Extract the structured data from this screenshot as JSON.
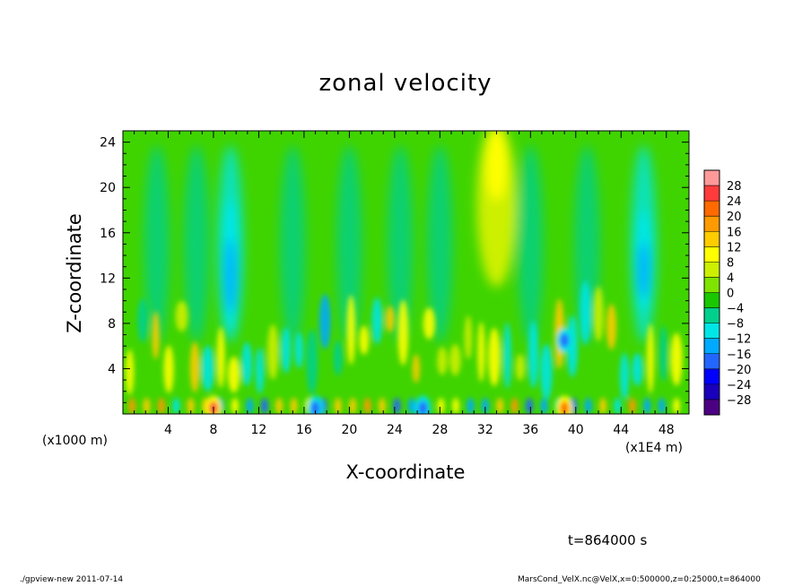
{
  "chart_data": {
    "type": "heatmap",
    "title": "zonal velocity",
    "xlabel": "X-coordinate",
    "ylabel": "Z-coordinate",
    "x_unit_left": "(x1000 m)",
    "x_unit_right": "(x1E4 m)",
    "xlim": [
      0,
      50
    ],
    "ylim": [
      0,
      25
    ],
    "x_ticks": [
      "4",
      "8",
      "12",
      "16",
      "20",
      "24",
      "28",
      "32",
      "36",
      "40",
      "44",
      "48"
    ],
    "x_tick_values": [
      4,
      8,
      12,
      16,
      20,
      24,
      28,
      32,
      36,
      40,
      44,
      48
    ],
    "y_ticks": [
      "4",
      "8",
      "12",
      "16",
      "20",
      "24"
    ],
    "y_tick_values": [
      4,
      8,
      12,
      16,
      20,
      24
    ],
    "colorbar": {
      "labels": [
        "28",
        "24",
        "20",
        "16",
        "12",
        "8",
        "4",
        "0",
        "−4",
        "−8",
        "−12",
        "−16",
        "−20",
        "−24",
        "−28"
      ],
      "levels": [
        32,
        28,
        24,
        20,
        16,
        12,
        8,
        4,
        0,
        -4,
        -8,
        -12,
        -16,
        -20,
        -24,
        -28,
        -32
      ],
      "colors": [
        "#ff9999",
        "#ff3b3b",
        "#ff6a00",
        "#ff9a00",
        "#ffcc00",
        "#ffff00",
        "#ccf000",
        "#7fe400",
        "#19c800",
        "#00d08c",
        "#00e6e6",
        "#00aaff",
        "#2266ff",
        "#0000ff",
        "#1a00bb",
        "#4b0082"
      ]
    },
    "features": [
      {
        "kind": "positive-jet",
        "x": 33,
        "z_top": 25,
        "z_bottom": 12,
        "peak": 12
      },
      {
        "kind": "negative-band",
        "x": 9.5,
        "z_top": 19,
        "z_bottom": 7,
        "peak": -14
      },
      {
        "kind": "negative-band",
        "x": 46,
        "z_top": 18,
        "z_bottom": 9,
        "peak": -14
      },
      {
        "kind": "surface-max",
        "x": 8,
        "z": 0.5,
        "peak": 26
      },
      {
        "kind": "surface-max",
        "x": 39,
        "z": 0.5,
        "peak": 22
      },
      {
        "kind": "surface-min",
        "x": 17,
        "z": 0.5,
        "peak": -18
      },
      {
        "kind": "surface-min",
        "x": 26.5,
        "z": 0.5,
        "peak": -16
      },
      {
        "kind": "min-cell",
        "x": 39,
        "z": 6.5,
        "peak": -16
      }
    ]
  },
  "annotations": {
    "time": "t=864000 s",
    "footer_left": "./gpview-new   2011-07-14",
    "footer_right": "MarsCond_VelX.nc@VelX,x=0:500000,z=0:25000,t=864000"
  }
}
